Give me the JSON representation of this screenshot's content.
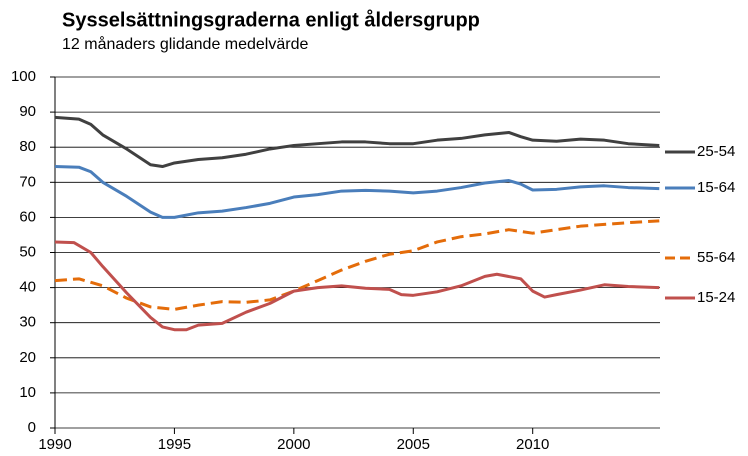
{
  "chart_data": {
    "type": "line",
    "title": "Sysselsättningsgraderna enligt åldersgrupp",
    "subtitle": "12 månaders glidande medelvärde",
    "xlim": [
      1990,
      2015.33
    ],
    "xticks": [
      1990,
      1995,
      2000,
      2005,
      2010
    ],
    "ylim": [
      0,
      100
    ],
    "yticks": [
      0,
      10,
      20,
      30,
      40,
      50,
      60,
      70,
      80,
      90,
      100
    ],
    "grid": true,
    "legend": "right",
    "series": [
      {
        "name": "25-54",
        "color": "#404040",
        "x": [
          1990,
          1991,
          1991.5,
          1992,
          1993,
          1994,
          1994.5,
          1995,
          1996,
          1997,
          1998,
          1999,
          2000,
          2001,
          2002,
          2003,
          2004,
          2005,
          2006,
          2007,
          2008,
          2009,
          2009.5,
          2010,
          2011,
          2012,
          2013,
          2014,
          2015.3
        ],
        "values": [
          88.5,
          88,
          86.5,
          83.5,
          79.5,
          75,
          74.5,
          75.5,
          76.5,
          77,
          78,
          79.5,
          80.5,
          81,
          81.5,
          81.5,
          81,
          81,
          82,
          82.5,
          83.5,
          84.2,
          83,
          82,
          81.7,
          82.3,
          82,
          81,
          80.5
        ]
      },
      {
        "name": "15-64",
        "color": "#4a7ebb",
        "x": [
          1990,
          1991,
          1991.5,
          1992,
          1993,
          1994,
          1994.5,
          1995,
          1996,
          1997,
          1998,
          1999,
          2000,
          2001,
          2002,
          2003,
          2004,
          2005,
          2006,
          2007,
          2008,
          2009,
          2009.5,
          2010,
          2011,
          2012,
          2013,
          2014,
          2015.3
        ],
        "values": [
          74.5,
          74.3,
          73,
          70,
          66,
          61.5,
          60,
          60,
          61.3,
          61.8,
          62.8,
          64,
          65.8,
          66.5,
          67.5,
          67.7,
          67.5,
          67,
          67.5,
          68.5,
          69.8,
          70.5,
          69.5,
          67.8,
          68,
          68.7,
          69,
          68.5,
          68.2
        ]
      },
      {
        "name": "55-64",
        "color": "#e46c0a",
        "dashed": true,
        "x": [
          1990,
          1991,
          1992,
          1993,
          1994,
          1995,
          1996,
          1997,
          1998,
          1999,
          2000,
          2001,
          2002,
          2003,
          2004,
          2005,
          2006,
          2007,
          2008,
          2009,
          2010,
          2011,
          2012,
          2013,
          2014,
          2015.3
        ],
        "values": [
          42,
          42.5,
          40.5,
          37,
          34.5,
          33.8,
          35,
          36,
          35.8,
          36.5,
          39,
          42,
          45,
          47.5,
          49.5,
          50.5,
          53,
          54.5,
          55.3,
          56.5,
          55.5,
          56.5,
          57.5,
          58,
          58.5,
          59
        ]
      },
      {
        "name": "15-24",
        "color": "#c0504d",
        "x": [
          1990,
          1990.8,
          1991.5,
          1992,
          1993,
          1994,
          1994.5,
          1995,
          1995.5,
          1996,
          1997,
          1998,
          1999,
          2000,
          2001,
          2002,
          2003,
          2004,
          2004.5,
          2005,
          2006,
          2007,
          2008,
          2008.5,
          2009.5,
          2010,
          2010.5,
          2011,
          2012,
          2013,
          2014,
          2015.3
        ],
        "values": [
          53,
          52.8,
          50,
          46,
          38.5,
          31.5,
          28.8,
          28,
          28,
          29.3,
          29.8,
          33,
          35.5,
          39,
          40,
          40.5,
          39.8,
          39.5,
          38,
          37.8,
          38.8,
          40.5,
          43.2,
          43.8,
          42.5,
          39,
          37.3,
          38,
          39.3,
          40.8,
          40.3,
          40
        ]
      }
    ]
  }
}
